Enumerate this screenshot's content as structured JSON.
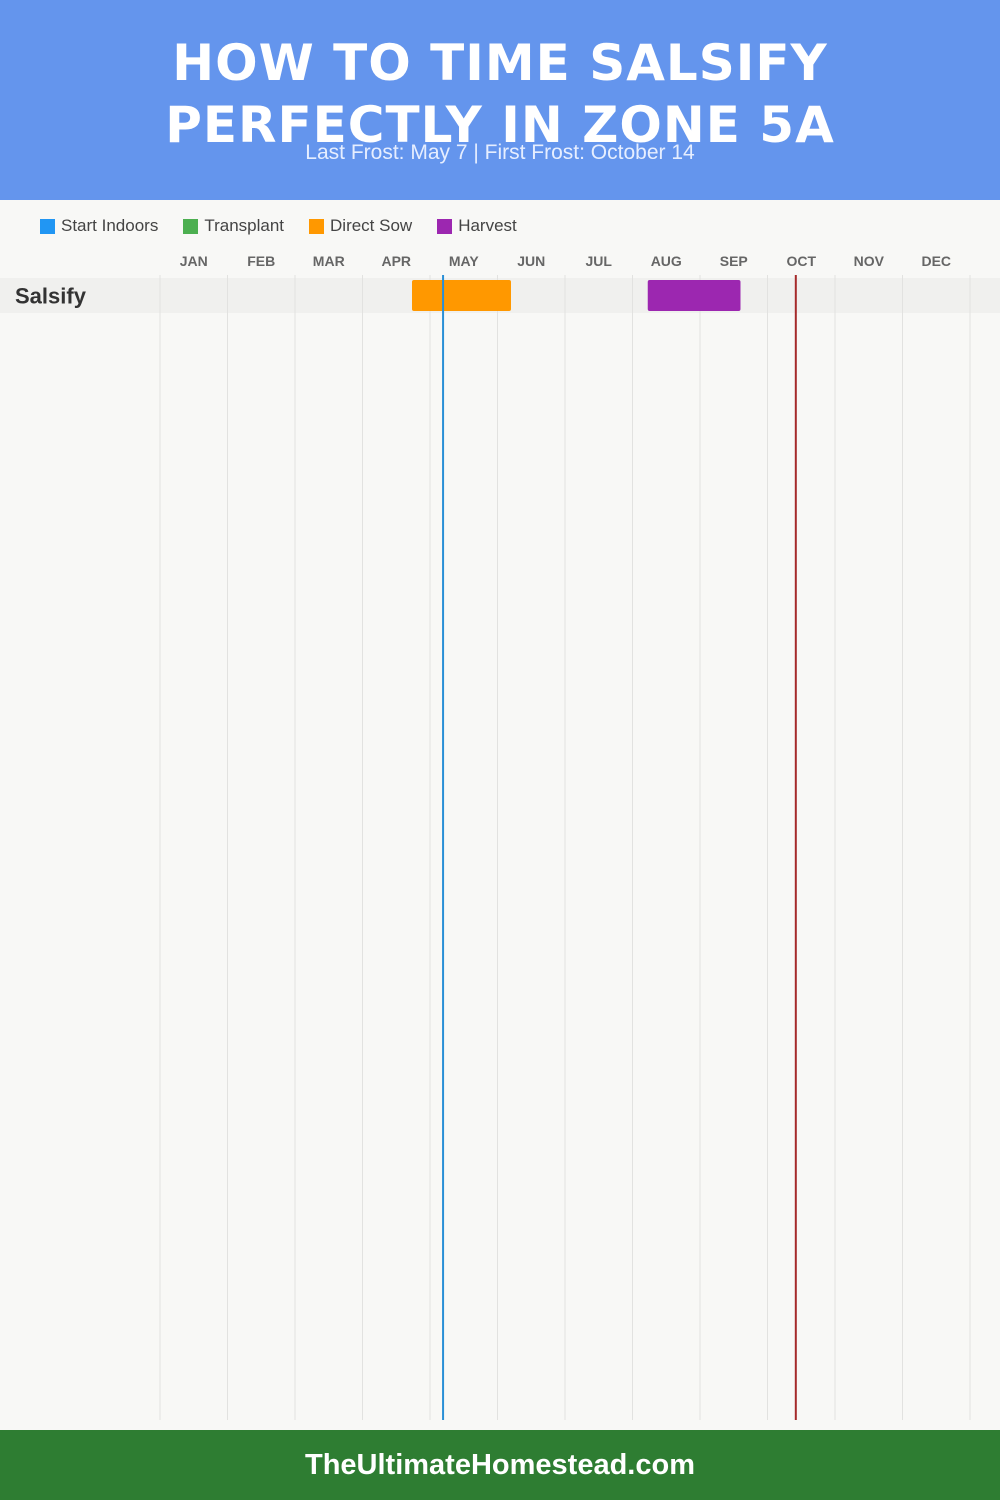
{
  "header": {
    "title_line1": "HOW TO TIME SALSIFY",
    "title_line2": "PERFECTLY IN ZONE 5A",
    "subtitle": "Last Frost: May 7 | First Frost: October 14"
  },
  "legend": [
    {
      "label": "Start Indoors",
      "color": "#2196f3"
    },
    {
      "label": "Transplant",
      "color": "#4caf50"
    },
    {
      "label": "Direct Sow",
      "color": "#ff9800"
    },
    {
      "label": "Harvest",
      "color": "#9c27b0"
    }
  ],
  "chart_data": {
    "type": "gantt",
    "months": [
      "JAN",
      "FEB",
      "MAR",
      "APR",
      "MAY",
      "JUN",
      "JUL",
      "AUG",
      "SEP",
      "OCT",
      "NOV",
      "DEC"
    ],
    "rows": [
      {
        "crop": "Salsify",
        "bars": [
          {
            "activity": "Direct Sow",
            "start": "Apr 23",
            "end": "Jun 7",
            "color": "#ff9800"
          },
          {
            "activity": "Harvest",
            "start": "Aug 8",
            "end": "Sep 19",
            "color": "#9c27b0"
          }
        ]
      }
    ],
    "markers": [
      {
        "label": "Last Frost",
        "date": "May 7",
        "color": "#2a8fd6"
      },
      {
        "label": "First Frost",
        "date": "October 14",
        "color": "#a52a2a"
      }
    ]
  },
  "footer": {
    "site": "TheUltimateHomestead.com"
  }
}
